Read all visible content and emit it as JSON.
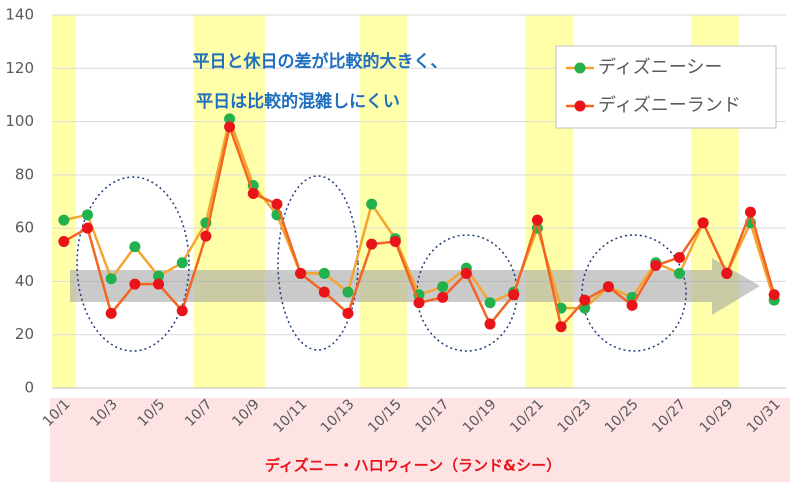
{
  "chart_data": {
    "type": "line",
    "annotations": [
      "平日と休日の差が比較的大きく、",
      "平日は比較的混雑しにくい"
    ],
    "x_label": "ディズニー・ハロウィーン（ランド&シー）",
    "categories": [
      "10/1",
      null,
      "10/3",
      null,
      "10/5",
      null,
      "10/7",
      null,
      "10/9",
      null,
      "10/11",
      null,
      "10/13",
      null,
      "10/15",
      null,
      "10/17",
      null,
      "10/19",
      null,
      "10/21",
      null,
      "10/23",
      null,
      "10/25",
      null,
      "10/27",
      null,
      "10/29",
      null,
      "10/31"
    ],
    "highlighted": [
      0,
      6,
      7,
      8,
      13,
      14,
      20,
      21,
      27,
      28
    ],
    "highlight_color": "#ffffaa",
    "series": [
      {
        "name": "ディズニーシー",
        "color": "#f5a431",
        "marker_color": "#22b14c",
        "values": [
          63,
          65,
          41,
          53,
          42,
          47,
          62,
          101,
          76,
          65,
          43,
          43,
          36,
          69,
          56,
          35,
          38,
          45,
          32,
          36,
          60,
          30,
          30,
          38,
          34,
          47,
          43,
          62,
          43,
          62,
          33
        ]
      },
      {
        "name": "ディズニーランド",
        "color": "#f26522",
        "marker_color": "#e8141a",
        "values": [
          55,
          60,
          28,
          39,
          39,
          29,
          57,
          98,
          73,
          69,
          43,
          36,
          28,
          54,
          55,
          32,
          34,
          43,
          24,
          35,
          63,
          23,
          33,
          38,
          31,
          46,
          49,
          62,
          43,
          66,
          35
        ]
      }
    ],
    "ylim": [
      0,
      140
    ],
    "yticks": [
      0,
      20,
      40,
      60,
      80,
      100,
      120,
      140
    ],
    "grid": true,
    "legend": "top-right"
  }
}
